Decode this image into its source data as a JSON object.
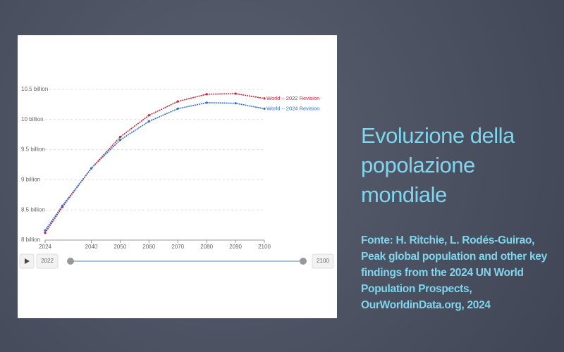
{
  "slide": {
    "title": "Evoluzione della popolazione mondiale",
    "source": "Fonte: H. Ritchie, L. Rodés-Guirao, Peak global population and other key findings from the 2024 UN World Population Prospects, OurWorldinData.org, 2024"
  },
  "chart_data": {
    "type": "line",
    "x": [
      2024,
      2030,
      2040,
      2050,
      2060,
      2070,
      2080,
      2090,
      2100
    ],
    "series": [
      {
        "name": "World – 2022 Revision",
        "color": "#c8243c",
        "values": [
          8.12,
          8.55,
          9.19,
          9.71,
          10.07,
          10.3,
          10.42,
          10.43,
          10.35
        ]
      },
      {
        "name": "World – 2024 Revision",
        "color": "#2e6fd0",
        "values": [
          8.16,
          8.57,
          9.19,
          9.66,
          9.97,
          10.18,
          10.28,
          10.27,
          10.18
        ]
      }
    ],
    "xlim": [
      2024,
      2100
    ],
    "xticks": [
      2024,
      2040,
      2050,
      2060,
      2070,
      2080,
      2090,
      2100
    ],
    "ylim": [
      8,
      10.5
    ],
    "yticks": [
      {
        "value": 8,
        "label": "8 billion"
      },
      {
        "value": 8.5,
        "label": "8.5 billion"
      },
      {
        "value": 9,
        "label": "9 billion"
      },
      {
        "value": 9.5,
        "label": "9.5 billion"
      },
      {
        "value": 10,
        "label": "10 billion"
      },
      {
        "value": 10.5,
        "label": "10.5 billion"
      }
    ],
    "grid": true
  },
  "timeline": {
    "start": 2022,
    "end": 2100
  }
}
